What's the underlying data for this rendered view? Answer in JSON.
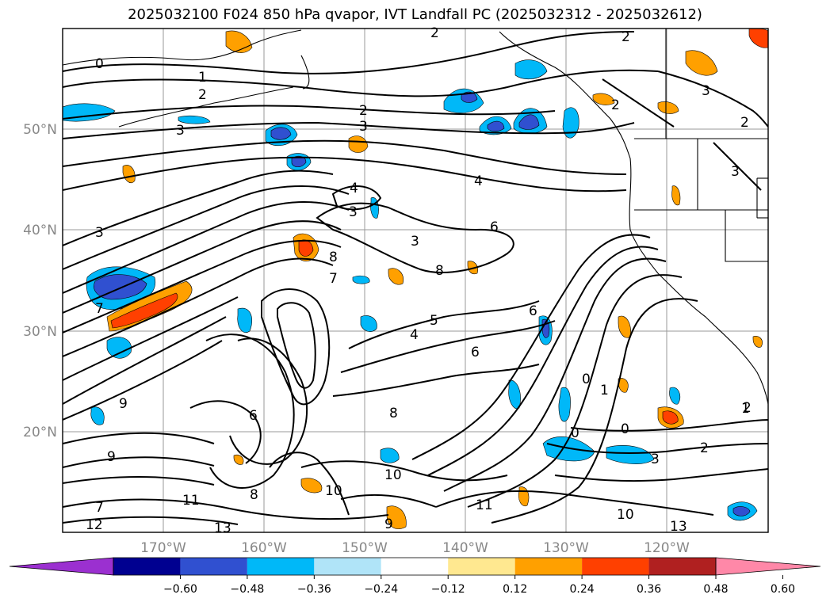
{
  "title": "2025032100 F024 850 hPa qvapor, IVT Landfall PC (2025032312 - 2025032612)",
  "map": {
    "lat_labels": [
      "50°N",
      "40°N",
      "30°N",
      "20°N"
    ],
    "lon_labels": [
      "170°W",
      "160°W",
      "150°W",
      "140°W",
      "130°W",
      "120°W"
    ],
    "contour_labels": [
      "0",
      "1",
      "2",
      "2",
      "2",
      "2",
      "2",
      "2",
      "3",
      "3",
      "3",
      "3",
      "3",
      "3",
      "3",
      "4",
      "4",
      "4",
      "5",
      "6",
      "6",
      "6",
      "6",
      "7",
      "7",
      "8",
      "8",
      "8",
      "9",
      "9",
      "10",
      "10",
      "11",
      "11",
      "13",
      "1",
      "0",
      "0",
      "0",
      "1",
      "2",
      "3",
      "2",
      "10",
      "12",
      "7",
      "9",
      "8",
      "13"
    ]
  },
  "colorbar": {
    "ticks": [
      "−0.60",
      "−0.48",
      "−0.36",
      "−0.24",
      "−0.12",
      "0.12",
      "0.24",
      "0.36",
      "0.48",
      "0.60"
    ],
    "colors": [
      "#9b30d0",
      "#000090",
      "#3050d0",
      "#00b8f8",
      "#b0e4f8",
      "#ffffff",
      "#ffe890",
      "#ffa000",
      "#ff4000",
      "#b02020",
      "#ff88a8"
    ]
  }
}
